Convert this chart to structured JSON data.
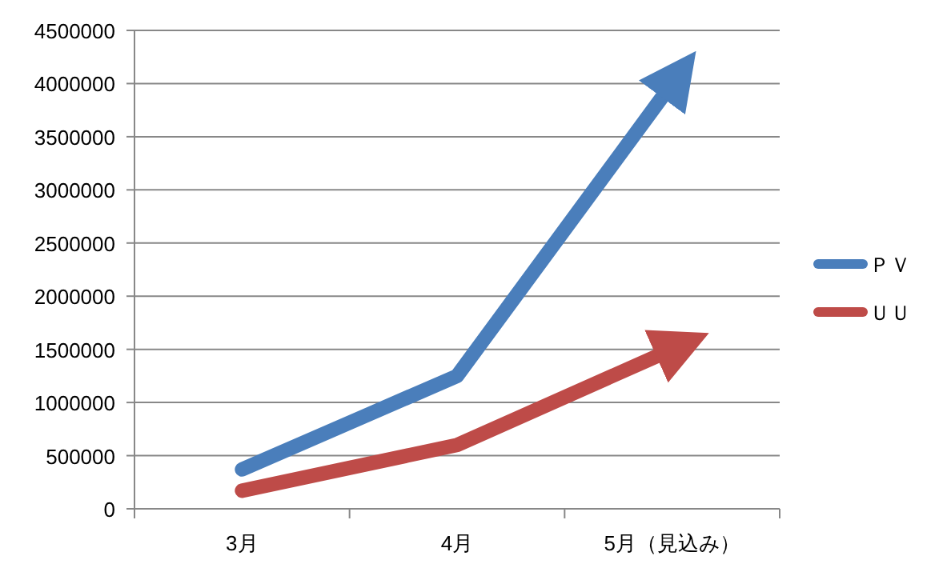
{
  "chart_data": {
    "type": "line",
    "categories": [
      "3月",
      "4月",
      "5月（見込み）"
    ],
    "series": [
      {
        "name": "ＰＶ",
        "color": "#4a7ebb",
        "values": [
          370000,
          1250000,
          4000000
        ]
      },
      {
        "name": "ＵＵ",
        "color": "#be4b48",
        "values": [
          170000,
          600000,
          1500000
        ]
      }
    ],
    "ylim": [
      0,
      4500000
    ],
    "yticks": [
      0,
      500000,
      1000000,
      1500000,
      2000000,
      2500000,
      3000000,
      3500000,
      4000000,
      4500000
    ],
    "grid": "y",
    "legend": "right"
  }
}
